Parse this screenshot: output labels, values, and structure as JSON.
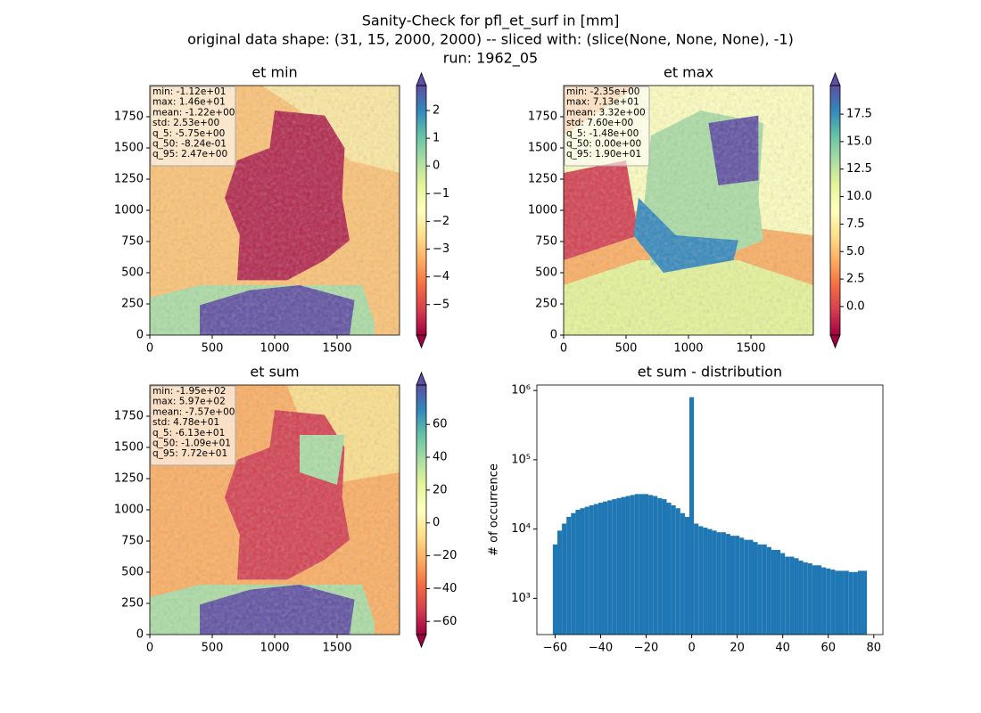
{
  "figure": {
    "title": [
      "Sanity-Check for pfl_et_surf in [mm]",
      "original data shape: (31, 15, 2000, 2000) -- sliced with: (slice(None, None, None), -1)",
      "run: 1962_05"
    ]
  },
  "chart_data": [
    {
      "type": "image",
      "title": "et min",
      "xlim": [
        0,
        2000
      ],
      "ylim": [
        0,
        2000
      ],
      "xticks": [
        0,
        500,
        1000,
        1500
      ],
      "yticks": [
        0,
        250,
        500,
        750,
        1000,
        1250,
        1500,
        1750
      ],
      "colormap": [
        "#9e0142",
        "#d53e4f",
        "#f46d43",
        "#fdae61",
        "#fee08b",
        "#ffffbf",
        "#e6f598",
        "#abdda4",
        "#66c2a5",
        "#3288bd",
        "#5e4fa2"
      ],
      "clim": [
        -6.1,
        2.9
      ],
      "cbar_ticks": [
        {
          "value": -5,
          "label": "−5"
        },
        {
          "value": -4,
          "label": "−4"
        },
        {
          "value": -3,
          "label": "−3"
        },
        {
          "value": -2,
          "label": "−2"
        },
        {
          "value": -1,
          "label": "−1"
        },
        0,
        1,
        2
      ],
      "stats": [
        "min: -1.12e+01",
        "max: 1.46e+01",
        "mean: -1.22e+00",
        "std: 2.53e+00",
        "q_5: -5.75e+00",
        "q_50: -8.24e-01",
        "q_95: 2.47e+00"
      ]
    },
    {
      "type": "image",
      "title": "et max",
      "xlim": [
        0,
        2000
      ],
      "ylim": [
        0,
        2000
      ],
      "xticks": [
        0,
        500,
        1000,
        1500
      ],
      "yticks": [
        0,
        250,
        500,
        750,
        1000,
        1250,
        1500,
        1750
      ],
      "colormap": [
        "#9e0142",
        "#d53e4f",
        "#f46d43",
        "#fdae61",
        "#fee08b",
        "#ffffbf",
        "#e6f598",
        "#abdda4",
        "#66c2a5",
        "#3288bd",
        "#5e4fa2"
      ],
      "clim": [
        -2.6,
        20.1
      ],
      "cbar_ticks": [
        {
          "value": 0,
          "label": "0.0"
        },
        2.5,
        {
          "value": 5,
          "label": "5.0"
        },
        7.5,
        {
          "value": 10,
          "label": "10.0"
        },
        12.5,
        {
          "value": 15,
          "label": "15.0"
        },
        17.5
      ],
      "stats": [
        "min: -2.35e+00",
        "max: 7.13e+01",
        "mean: 3.32e+00",
        "std: 7.60e+00",
        "q_5: -1.48e+00",
        "q_50: 0.00e+00",
        "q_95: 1.90e+01"
      ]
    },
    {
      "type": "image",
      "title": "et sum",
      "xlim": [
        0,
        2000
      ],
      "ylim": [
        0,
        2000
      ],
      "xticks": [
        0,
        500,
        1000,
        1500
      ],
      "yticks": [
        0,
        250,
        500,
        750,
        1000,
        1250,
        1500,
        1750
      ],
      "colormap": [
        "#9e0142",
        "#d53e4f",
        "#f46d43",
        "#fdae61",
        "#fee08b",
        "#ffffbf",
        "#e6f598",
        "#abdda4",
        "#66c2a5",
        "#3288bd",
        "#5e4fa2"
      ],
      "clim": [
        -68,
        84
      ],
      "cbar_ticks": [
        {
          "value": -60,
          "label": "−60"
        },
        {
          "value": -40,
          "label": "−40"
        },
        {
          "value": -20,
          "label": "−20"
        },
        0,
        20,
        40,
        60
      ],
      "stats": [
        "min: -1.95e+02",
        "max: 5.97e+02",
        "mean: -7.57e+00",
        "std: 4.78e+01",
        "q_5: -6.13e+01",
        "q_50: -1.09e+01",
        "q_95: 7.72e+01"
      ]
    },
    {
      "type": "histogram",
      "title": "et sum - distribution",
      "y_label": "# of occurrence",
      "color": "#1f77b4",
      "log_y": true,
      "xlim": [
        -68,
        84
      ],
      "ylim": [
        300,
        1200000
      ],
      "xticks": [
        {
          "value": -60,
          "label": "−60"
        },
        {
          "value": -40,
          "label": "−40"
        },
        {
          "value": -20,
          "label": "−20"
        },
        0,
        20,
        40,
        60,
        80
      ],
      "yticks": [
        {
          "value": 1000,
          "label": "10³"
        },
        {
          "value": 10000,
          "label": "10⁴"
        },
        {
          "value": 100000,
          "label": "10⁵"
        },
        {
          "value": 1000000,
          "label": "10⁶"
        }
      ],
      "bins": [
        -61,
        -59,
        -57,
        -55,
        -53,
        -51,
        -49,
        -47,
        -45,
        -43,
        -41,
        -39,
        -37,
        -35,
        -33,
        -31,
        -29,
        -27,
        -25,
        -23,
        -21,
        -19,
        -17,
        -15,
        -13,
        -11,
        -9,
        -7,
        -5,
        -3,
        -1,
        1,
        3,
        5,
        7,
        9,
        11,
        13,
        15,
        17,
        19,
        21,
        23,
        25,
        27,
        29,
        31,
        33,
        35,
        37,
        39,
        41,
        43,
        45,
        47,
        49,
        51,
        53,
        55,
        57,
        59,
        61,
        63,
        65,
        67,
        69,
        71,
        73,
        75,
        77
      ],
      "values": [
        6000,
        9500,
        12000,
        15000,
        17000,
        19000,
        20000,
        21000,
        22000,
        23000,
        24000,
        25000,
        26000,
        27000,
        28000,
        29000,
        30000,
        31000,
        32000,
        32000,
        32000,
        31000,
        30000,
        28000,
        27000,
        24000,
        22000,
        20000,
        17000,
        15000,
        800000,
        12000,
        11000,
        10500,
        10000,
        9500,
        9000,
        9000,
        8500,
        8000,
        8000,
        7500,
        7000,
        7000,
        6500,
        6000,
        6000,
        5500,
        5000,
        5000,
        4500,
        4000,
        4000,
        3800,
        3500,
        3300,
        3200,
        3000,
        3000,
        2800,
        2700,
        2600,
        2500,
        2500,
        2500,
        2400,
        2400,
        2500,
        2500
      ]
    }
  ]
}
